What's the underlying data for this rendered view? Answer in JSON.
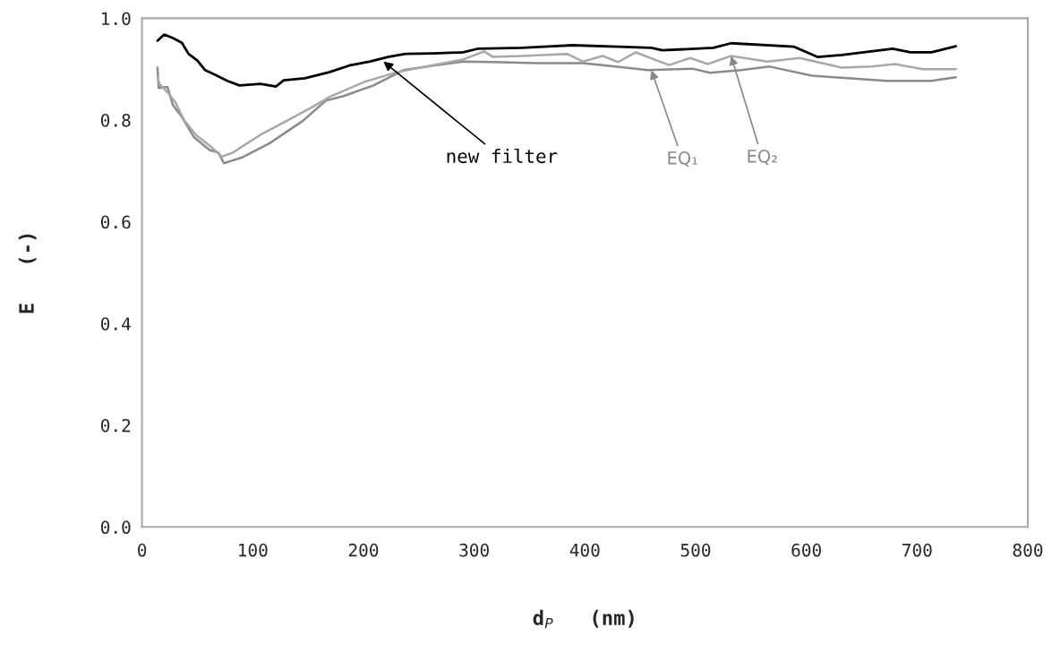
{
  "chart_data": {
    "type": "line",
    "xlabel": "d$_{P}$   (nm)",
    "ylabel": "E   (-)",
    "xlim": [
      0,
      800
    ],
    "xticks": [
      0,
      100,
      200,
      300,
      400,
      500,
      600,
      700,
      800
    ],
    "ylim": [
      0.0,
      1.0
    ],
    "yticks": [
      {
        "value": 0.0,
        "label": "0.0"
      },
      0.2,
      0.4,
      0.6,
      0.8,
      {
        "value": 1.0,
        "label": "1.0"
      }
    ],
    "grid": false,
    "legend": false,
    "marker": "none",
    "line_style": "solid",
    "series": [
      {
        "color": "#000000",
        "x": [
          14,
          20,
          28,
          36,
          42,
          50,
          57,
          66,
          77,
          88,
          107,
          121,
          128,
          147,
          169,
          187,
          206,
          222,
          238,
          263,
          290,
          303,
          343,
          371,
          389,
          430,
          460,
          470,
          516,
          532,
          589,
          610,
          632,
          678,
          694,
          713,
          735
        ],
        "values": [
          0.956,
          0.968,
          0.961,
          0.952,
          0.93,
          0.917,
          0.898,
          0.889,
          0.877,
          0.868,
          0.871,
          0.866,
          0.878,
          0.882,
          0.894,
          0.907,
          0.915,
          0.924,
          0.93,
          0.931,
          0.933,
          0.94,
          0.942,
          0.945,
          0.947,
          0.944,
          0.942,
          0.937,
          0.942,
          0.951,
          0.944,
          0.924,
          0.928,
          0.94,
          0.933,
          0.933,
          0.945
        ]
      },
      {
        "color": "#8a8a8a",
        "x": [
          14,
          15,
          23,
          28,
          36,
          47,
          61,
          69,
          74,
          91,
          115,
          145,
          166,
          182,
          209,
          236,
          263,
          290,
          317,
          357,
          398,
          416,
          457,
          497,
          513,
          541,
          567,
          605,
          672,
          713,
          735
        ],
        "values": [
          0.903,
          0.863,
          0.865,
          0.829,
          0.806,
          0.766,
          0.741,
          0.736,
          0.715,
          0.727,
          0.754,
          0.798,
          0.838,
          0.847,
          0.868,
          0.898,
          0.907,
          0.915,
          0.914,
          0.912,
          0.912,
          0.908,
          0.898,
          0.901,
          0.893,
          0.898,
          0.905,
          0.887,
          0.877,
          0.877,
          0.884
        ]
      },
      {
        "color": "#a8a8a8",
        "x": [
          14,
          16,
          24,
          30,
          38,
          49,
          62,
          72,
          82,
          107,
          133,
          155,
          169,
          201,
          230,
          263,
          290,
          309,
          317,
          343,
          384,
          398,
          416,
          430,
          446,
          476,
          495,
          511,
          532,
          565,
          594,
          632,
          659,
          680,
          705,
          735
        ],
        "values": [
          0.885,
          0.87,
          0.852,
          0.835,
          0.8,
          0.77,
          0.748,
          0.728,
          0.736,
          0.771,
          0.801,
          0.827,
          0.845,
          0.875,
          0.894,
          0.908,
          0.919,
          0.935,
          0.924,
          0.926,
          0.93,
          0.915,
          0.926,
          0.914,
          0.933,
          0.908,
          0.922,
          0.91,
          0.926,
          0.915,
          0.922,
          0.903,
          0.905,
          0.91,
          0.9,
          0.9
        ]
      }
    ],
    "annotations": [
      {
        "text": "new filter",
        "x": 218,
        "y": 0.915
      },
      {
        "text": "EQ₁",
        "x": 460,
        "y": 0.898
      },
      {
        "text": "EQ₂",
        "x": 532,
        "y": 0.926
      }
    ]
  }
}
